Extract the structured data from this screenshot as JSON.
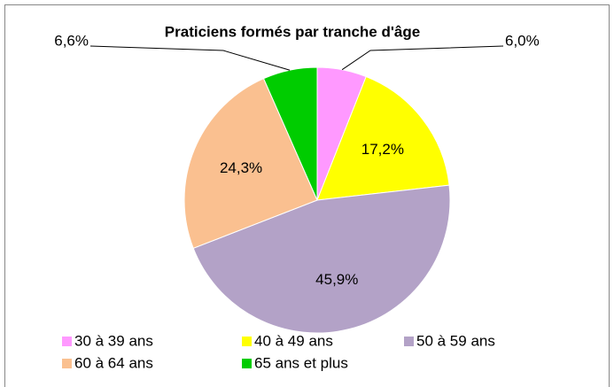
{
  "chart_data": {
    "type": "pie",
    "title": "Praticiens formés par tranche d'âge",
    "categories": [
      "30 à 39 ans",
      "40 à 49 ans",
      "50 à 59 ans",
      "60 à 64 ans",
      "65 ans et plus"
    ],
    "values": [
      6.0,
      17.2,
      45.9,
      24.3,
      6.6
    ],
    "value_labels": [
      "6,0%",
      "17,2%",
      "45,9%",
      "24,3%",
      "6,6%"
    ],
    "colors": [
      "#ff99ff",
      "#ffff00",
      "#b3a2c7",
      "#fac090",
      "#00cc00"
    ],
    "legend": "bottom"
  }
}
